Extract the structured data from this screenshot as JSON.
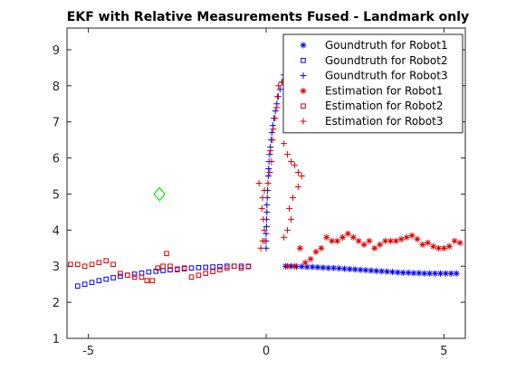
{
  "chart_data": {
    "type": "scatter",
    "title": "EKF with Relative Measurements Fused - Landmark only",
    "xlabel": "",
    "ylabel": "",
    "xlim": [
      -5.6,
      5.6
    ],
    "ylim": [
      1,
      9.6
    ],
    "xticks": [
      -5,
      0,
      5
    ],
    "yticks": [
      1,
      2,
      3,
      4,
      5,
      6,
      7,
      8,
      9
    ],
    "xtick_labels": [
      "-5",
      "0",
      "5"
    ],
    "ytick_labels": [
      "1",
      "2",
      "3",
      "4",
      "5",
      "6",
      "7",
      "8",
      "9"
    ],
    "grid": false,
    "legend_position": "top-right",
    "landmark": {
      "x": -3.0,
      "y": 5.0,
      "marker": "diamond",
      "color": "#00ee00"
    },
    "series": [
      {
        "name": "Goundtruth for Robot1",
        "marker": "asterisk",
        "color": "#0000ff",
        "points": [
          [
            0.55,
            3.0
          ],
          [
            0.7,
            3.0
          ],
          [
            0.85,
            2.99
          ],
          [
            1.0,
            2.99
          ],
          [
            1.15,
            2.98
          ],
          [
            1.3,
            2.98
          ],
          [
            1.45,
            2.97
          ],
          [
            1.6,
            2.96
          ],
          [
            1.75,
            2.95
          ],
          [
            1.9,
            2.95
          ],
          [
            2.05,
            2.94
          ],
          [
            2.2,
            2.93
          ],
          [
            2.35,
            2.92
          ],
          [
            2.5,
            2.91
          ],
          [
            2.65,
            2.9
          ],
          [
            2.8,
            2.89
          ],
          [
            2.95,
            2.88
          ],
          [
            3.1,
            2.87
          ],
          [
            3.25,
            2.86
          ],
          [
            3.4,
            2.85
          ],
          [
            3.55,
            2.84
          ],
          [
            3.7,
            2.83
          ],
          [
            3.85,
            2.82
          ],
          [
            4.0,
            2.82
          ],
          [
            4.15,
            2.81
          ],
          [
            4.3,
            2.81
          ],
          [
            4.45,
            2.8
          ],
          [
            4.6,
            2.8
          ],
          [
            4.75,
            2.8
          ],
          [
            4.9,
            2.8
          ],
          [
            5.05,
            2.8
          ],
          [
            5.2,
            2.8
          ],
          [
            5.35,
            2.8
          ]
        ]
      },
      {
        "name": "Goundtruth for Robot2",
        "marker": "square",
        "color": "#0000ff",
        "points": [
          [
            -5.3,
            2.45
          ],
          [
            -5.1,
            2.5
          ],
          [
            -4.9,
            2.55
          ],
          [
            -4.7,
            2.6
          ],
          [
            -4.5,
            2.64
          ],
          [
            -4.3,
            2.68
          ],
          [
            -4.1,
            2.72
          ],
          [
            -3.9,
            2.75
          ],
          [
            -3.7,
            2.78
          ],
          [
            -3.5,
            2.81
          ],
          [
            -3.3,
            2.84
          ],
          [
            -3.1,
            2.86
          ],
          [
            -2.9,
            2.88
          ],
          [
            -2.7,
            2.9
          ],
          [
            -2.5,
            2.92
          ],
          [
            -2.3,
            2.93
          ],
          [
            -2.1,
            2.95
          ],
          [
            -1.9,
            2.96
          ],
          [
            -1.7,
            2.97
          ],
          [
            -1.5,
            2.98
          ],
          [
            -1.3,
            2.99
          ],
          [
            -1.1,
            3.0
          ],
          [
            -0.9,
            3.0
          ],
          [
            -0.7,
            3.0
          ],
          [
            -0.5,
            2.99
          ]
        ]
      },
      {
        "name": "Goundtruth for Robot3",
        "marker": "plus",
        "color": "#0000ff",
        "points": [
          [
            0.0,
            3.5
          ],
          [
            0.0,
            3.7
          ],
          [
            0.0,
            3.9
          ],
          [
            0.01,
            4.1
          ],
          [
            0.01,
            4.3
          ],
          [
            0.02,
            4.5
          ],
          [
            0.02,
            4.7
          ],
          [
            0.03,
            4.9
          ],
          [
            0.04,
            5.1
          ],
          [
            0.05,
            5.3
          ],
          [
            0.06,
            5.5
          ],
          [
            0.07,
            5.7
          ],
          [
            0.08,
            5.9
          ],
          [
            0.1,
            6.1
          ],
          [
            0.12,
            6.3
          ],
          [
            0.14,
            6.5
          ],
          [
            0.16,
            6.7
          ],
          [
            0.19,
            6.9
          ],
          [
            0.22,
            7.1
          ],
          [
            0.26,
            7.3
          ],
          [
            0.3,
            7.5
          ],
          [
            0.34,
            7.7
          ],
          [
            0.39,
            7.9
          ],
          [
            0.44,
            8.1
          ],
          [
            0.5,
            8.3
          ]
        ]
      },
      {
        "name": "Estimation for Robot1",
        "marker": "asterisk",
        "color": "#dd0000",
        "points": [
          [
            0.6,
            3.0
          ],
          [
            0.8,
            3.0
          ],
          [
            0.95,
            3.5
          ],
          [
            1.1,
            3.1
          ],
          [
            1.25,
            3.2
          ],
          [
            1.4,
            3.4
          ],
          [
            1.55,
            3.5
          ],
          [
            1.7,
            3.8
          ],
          [
            1.85,
            3.7
          ],
          [
            2.0,
            3.7
          ],
          [
            2.15,
            3.8
          ],
          [
            2.3,
            3.9
          ],
          [
            2.45,
            3.8
          ],
          [
            2.6,
            3.7
          ],
          [
            2.75,
            3.6
          ],
          [
            2.9,
            3.7
          ],
          [
            3.05,
            3.5
          ],
          [
            3.2,
            3.6
          ],
          [
            3.35,
            3.7
          ],
          [
            3.5,
            3.7
          ],
          [
            3.65,
            3.7
          ],
          [
            3.8,
            3.75
          ],
          [
            3.95,
            3.8
          ],
          [
            4.1,
            3.85
          ],
          [
            4.25,
            3.75
          ],
          [
            4.4,
            3.6
          ],
          [
            4.55,
            3.65
          ],
          [
            4.7,
            3.55
          ],
          [
            4.85,
            3.5
          ],
          [
            5.0,
            3.5
          ],
          [
            5.15,
            3.55
          ],
          [
            5.3,
            3.7
          ],
          [
            5.45,
            3.65
          ]
        ]
      },
      {
        "name": "Estimation for Robot2",
        "marker": "square",
        "color": "#dd0000",
        "points": [
          [
            -5.5,
            3.05
          ],
          [
            -5.3,
            3.05
          ],
          [
            -5.1,
            3.0
          ],
          [
            -4.9,
            3.05
          ],
          [
            -4.7,
            3.1
          ],
          [
            -4.5,
            3.15
          ],
          [
            -4.3,
            3.05
          ],
          [
            -4.1,
            2.8
          ],
          [
            -3.9,
            2.75
          ],
          [
            -3.7,
            2.7
          ],
          [
            -3.5,
            2.7
          ],
          [
            -3.35,
            2.6
          ],
          [
            -3.2,
            2.6
          ],
          [
            -3.05,
            2.95
          ],
          [
            -2.9,
            3.0
          ],
          [
            -2.8,
            3.35
          ],
          [
            -2.7,
            3.0
          ],
          [
            -2.5,
            2.9
          ],
          [
            -2.3,
            2.95
          ],
          [
            -2.1,
            2.7
          ],
          [
            -1.9,
            2.75
          ],
          [
            -1.7,
            2.8
          ],
          [
            -1.5,
            2.85
          ],
          [
            -1.3,
            2.9
          ],
          [
            -1.1,
            2.95
          ],
          [
            -0.9,
            3.0
          ],
          [
            -0.7,
            2.95
          ],
          [
            -0.5,
            3.0
          ]
        ]
      },
      {
        "name": "Estimation for Robot3",
        "marker": "plus",
        "color": "#dd0000",
        "points": [
          [
            -0.15,
            3.5
          ],
          [
            -0.1,
            3.7
          ],
          [
            -0.05,
            4.0
          ],
          [
            -0.08,
            4.3
          ],
          [
            -0.12,
            4.6
          ],
          [
            -0.1,
            4.9
          ],
          [
            -0.05,
            5.1
          ],
          [
            0.05,
            5.3
          ],
          [
            0.1,
            5.6
          ],
          [
            0.15,
            5.9
          ],
          [
            0.12,
            6.2
          ],
          [
            0.18,
            6.5
          ],
          [
            0.2,
            6.8
          ],
          [
            0.25,
            7.1
          ],
          [
            0.3,
            7.4
          ],
          [
            0.32,
            7.7
          ],
          [
            0.35,
            8.0
          ],
          [
            0.45,
            8.1
          ],
          [
            0.55,
            8.2
          ],
          [
            0.5,
            6.4
          ],
          [
            0.6,
            6.1
          ],
          [
            0.7,
            5.9
          ],
          [
            0.8,
            5.8
          ],
          [
            0.9,
            5.6
          ],
          [
            1.0,
            5.5
          ],
          [
            0.9,
            5.2
          ],
          [
            0.75,
            4.9
          ],
          [
            0.65,
            4.6
          ],
          [
            0.7,
            4.3
          ],
          [
            0.6,
            4.0
          ],
          [
            0.5,
            3.8
          ],
          [
            -0.05,
            3.7
          ],
          [
            -0.2,
            5.3
          ]
        ]
      }
    ]
  }
}
